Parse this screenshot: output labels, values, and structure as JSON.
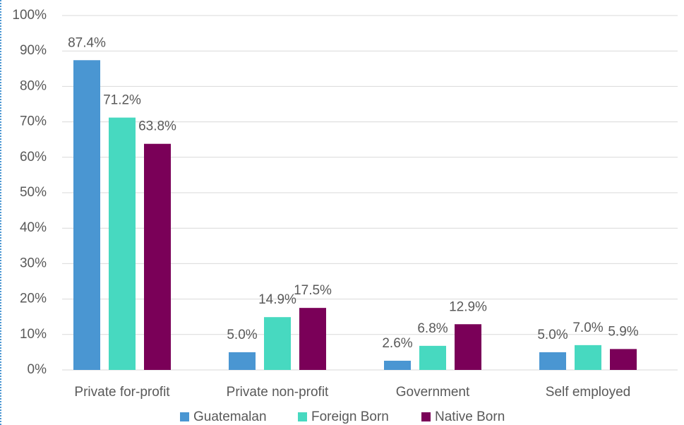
{
  "chart_data": {
    "type": "bar",
    "categories": [
      "Private for-profit",
      "Private non-profit",
      "Government",
      "Self employed"
    ],
    "series": [
      {
        "name": "Guatemalan",
        "color": "#4a96d2",
        "values": [
          87.4,
          5.0,
          2.6,
          5.0
        ],
        "value_labels": [
          "87.4%",
          "5.0%",
          "2.6%",
          "5.0%"
        ]
      },
      {
        "name": "Foreign Born",
        "color": "#47d9c0",
        "values": [
          71.2,
          14.9,
          6.8,
          7.0
        ],
        "value_labels": [
          "71.2%",
          "14.9%",
          "6.8%",
          "7.0%"
        ]
      },
      {
        "name": "Native Born",
        "color": "#7a0058",
        "values": [
          63.8,
          17.5,
          12.9,
          5.9
        ],
        "value_labels": [
          "63.8%",
          "17.5%",
          "12.9%",
          "5.9%"
        ]
      }
    ],
    "ylim": [
      0,
      100
    ],
    "yticks": [
      {
        "value": 0,
        "label": "0%"
      },
      {
        "value": 10,
        "label": "10%"
      },
      {
        "value": 20,
        "label": "20%"
      },
      {
        "value": 30,
        "label": "30%"
      },
      {
        "value": 40,
        "label": "40%"
      },
      {
        "value": 50,
        "label": "50%"
      },
      {
        "value": 60,
        "label": "60%"
      },
      {
        "value": 70,
        "label": "70%"
      },
      {
        "value": 80,
        "label": "80%"
      },
      {
        "value": 90,
        "label": "90%"
      },
      {
        "value": 100,
        "label": "100%"
      }
    ],
    "grid": true,
    "legend": "bottom"
  }
}
